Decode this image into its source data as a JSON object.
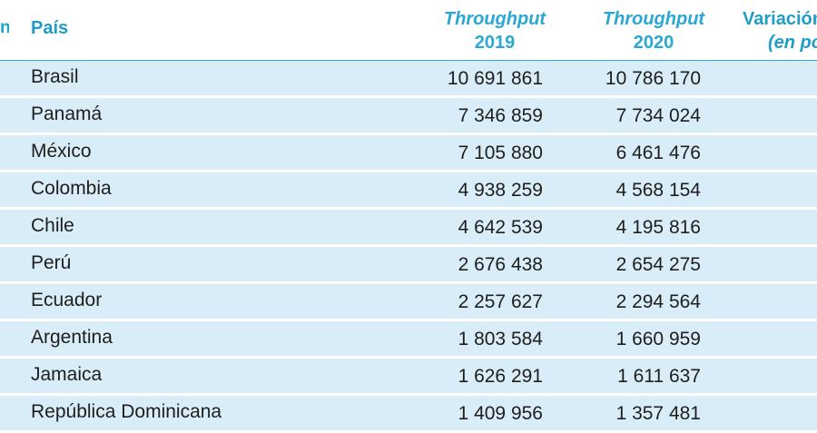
{
  "table": {
    "header": {
      "country": "País",
      "throughput_2019_line1": "Throughput",
      "throughput_2019_line2": "2019",
      "throughput_2020_line1": "Throughput",
      "throughput_2020_line2": "2020",
      "variation_line1": "Variación",
      "variation_line2": "(en po"
    },
    "rows": [
      {
        "country": "Brasil",
        "y2019": "10 691 861",
        "y2020": "10 786 170"
      },
      {
        "country": "Panamá",
        "y2019": "7 346 859",
        "y2020": "7 734 024"
      },
      {
        "country": "México",
        "y2019": "7 105 880",
        "y2020": "6 461 476"
      },
      {
        "country": "Colombia",
        "y2019": "4 938 259",
        "y2020": "4 568 154"
      },
      {
        "country": "Chile",
        "y2019": "4 642 539",
        "y2020": "4 195 816"
      },
      {
        "country": "Perú",
        "y2019": "2 676 438",
        "y2020": "2 654 275"
      },
      {
        "country": "Ecuador",
        "y2019": "2 257 627",
        "y2020": "2 294 564"
      },
      {
        "country": "Argentina",
        "y2019": "1 803 584",
        "y2020": "1 660 959"
      },
      {
        "country": "Jamaica",
        "y2019": "1 626 291",
        "y2020": "1 611 637"
      },
      {
        "country": "República Dominicana",
        "y2019": "1 409 956",
        "y2020": "1 357 481"
      }
    ],
    "colors": {
      "header_text": "#1f9dc4",
      "row_bg": "#d8edf7",
      "rule": "#3aa6c8"
    }
  }
}
